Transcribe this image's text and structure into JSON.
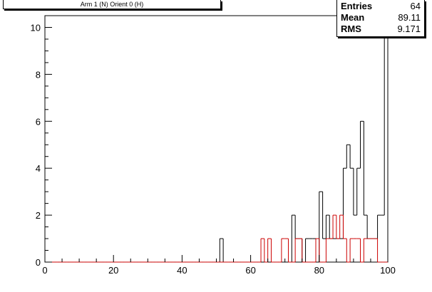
{
  "title": "Arm 1 (N) Orient 0 (H)",
  "stats": {
    "rows": [
      {
        "label": "Entries",
        "value": "64"
      },
      {
        "label": "Mean",
        "value": "89.11"
      },
      {
        "label": "RMS",
        "value": "9.171"
      }
    ]
  },
  "chart_data": {
    "type": "histogram",
    "title": "Arm 1 (N) Orient 0 (H)",
    "xlim": [
      0,
      100
    ],
    "ylim": [
      0,
      10.5
    ],
    "bin_width": 1,
    "x_ticks": [
      0,
      20,
      40,
      60,
      80,
      100
    ],
    "y_ticks": [
      0,
      2,
      4,
      6,
      8,
      10
    ],
    "grid": false,
    "series": [
      {
        "color": "#000000",
        "bins": [
          {
            "x": 51,
            "y": 1
          },
          {
            "x": 72,
            "y": 2
          },
          {
            "x": 73,
            "y": 1
          },
          {
            "x": 74,
            "y": 1
          },
          {
            "x": 76,
            "y": 1
          },
          {
            "x": 77,
            "y": 1
          },
          {
            "x": 78,
            "y": 1
          },
          {
            "x": 80,
            "y": 3
          },
          {
            "x": 81,
            "y": 1
          },
          {
            "x": 82,
            "y": 2
          },
          {
            "x": 83,
            "y": 1
          },
          {
            "x": 84,
            "y": 1
          },
          {
            "x": 85,
            "y": 1
          },
          {
            "x": 86,
            "y": 1
          },
          {
            "x": 87,
            "y": 4
          },
          {
            "x": 88,
            "y": 5
          },
          {
            "x": 89,
            "y": 4
          },
          {
            "x": 90,
            "y": 2
          },
          {
            "x": 91,
            "y": 4
          },
          {
            "x": 92,
            "y": 6
          },
          {
            "x": 93,
            "y": 2
          },
          {
            "x": 94,
            "y": 1
          },
          {
            "x": 95,
            "y": 1
          },
          {
            "x": 96,
            "y": 1
          },
          {
            "x": 97,
            "y": 2
          },
          {
            "x": 98,
            "y": 2
          },
          {
            "x": 99,
            "y": 10
          }
        ]
      },
      {
        "color": "#cc0000",
        "bins": [
          {
            "x": 63,
            "y": 1
          },
          {
            "x": 65,
            "y": 1
          },
          {
            "x": 69,
            "y": 1
          },
          {
            "x": 70,
            "y": 1
          },
          {
            "x": 73,
            "y": 1
          },
          {
            "x": 74,
            "y": 1
          },
          {
            "x": 79,
            "y": 1
          },
          {
            "x": 82,
            "y": 1
          },
          {
            "x": 83,
            "y": 1
          },
          {
            "x": 84,
            "y": 2
          },
          {
            "x": 85,
            "y": 1
          },
          {
            "x": 86,
            "y": 2
          },
          {
            "x": 87,
            "y": 1
          },
          {
            "x": 89,
            "y": 1
          },
          {
            "x": 90,
            "y": 1
          },
          {
            "x": 91,
            "y": 1
          },
          {
            "x": 93,
            "y": 1
          },
          {
            "x": 94,
            "y": 1
          },
          {
            "x": 95,
            "y": 1
          },
          {
            "x": 96,
            "y": 1
          }
        ]
      }
    ]
  }
}
